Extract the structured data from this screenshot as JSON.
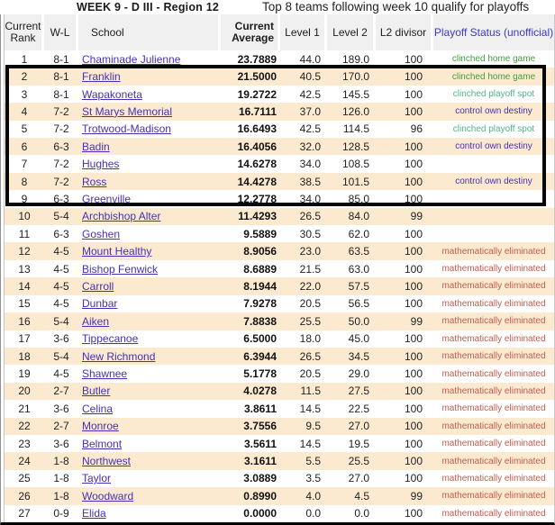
{
  "title": {
    "left": "WEEK 9 - D III - Region 12",
    "right": "Top 8 teams following week 10 qualify for playoffs"
  },
  "colors": {
    "row_alt": "#fcead0",
    "header_bg": "#f0f0f0",
    "header_blue": "#3a3ac6",
    "link": "#4531b5",
    "status_map": {
      "clinched home game": "#3da23d",
      "clinched playoff spot": "#52b487",
      "control own destiny": "#4a2fae",
      "mathematically eliminated": "#c25b4e"
    }
  },
  "table": {
    "headers": {
      "rank": "Current Rank",
      "wl": "W-L",
      "school": "School",
      "avg": "Current Average",
      "l1": "Level 1",
      "l2": "Level 2",
      "divisor": "L2 divisor",
      "status": "Playoff Status (unofficial)"
    },
    "rows": [
      [
        "1",
        "8-1",
        "Chaminade Julienne",
        "23.7889",
        "44.0",
        "189.0",
        "100",
        "clinched home game"
      ],
      [
        "2",
        "8-1",
        "Franklin",
        "21.5000",
        "40.5",
        "170.0",
        "100",
        "clinched home game"
      ],
      [
        "3",
        "8-1",
        "Wapakoneta",
        "19.2722",
        "42.5",
        "145.5",
        "100",
        "clinched playoff spot"
      ],
      [
        "4",
        "7-2",
        "St Marys Memorial",
        "16.7111",
        "37.0",
        "126.0",
        "100",
        "control own destiny"
      ],
      [
        "5",
        "7-2",
        "Trotwood-Madison",
        "16.6493",
        "42.5",
        "114.5",
        "96",
        "clinched playoff spot"
      ],
      [
        "6",
        "6-3",
        "Badin",
        "16.4056",
        "32.0",
        "128.5",
        "100",
        "control own destiny"
      ],
      [
        "7",
        "7-2",
        "Hughes",
        "14.6278",
        "34.0",
        "108.5",
        "100",
        ""
      ],
      [
        "8",
        "7-2",
        "Ross",
        "14.4278",
        "38.5",
        "101.5",
        "100",
        "control own destiny"
      ],
      [
        "9",
        "6-3",
        "Greenville",
        "12.2778",
        "34.0",
        "85.0",
        "100",
        ""
      ],
      [
        "10",
        "5-4",
        "Archbishop Alter",
        "11.4293",
        "26.5",
        "84.0",
        "99",
        ""
      ],
      [
        "11",
        "6-3",
        "Goshen",
        "9.5889",
        "30.5",
        "62.0",
        "100",
        ""
      ],
      [
        "12",
        "4-5",
        "Mount Healthy",
        "8.9056",
        "23.0",
        "63.5",
        "100",
        "mathematically eliminated"
      ],
      [
        "13",
        "4-5",
        "Bishop Fenwick",
        "8.6889",
        "21.5",
        "63.0",
        "100",
        "mathematically eliminated"
      ],
      [
        "14",
        "4-5",
        "Carroll",
        "8.1944",
        "22.0",
        "57.5",
        "100",
        "mathematically eliminated"
      ],
      [
        "15",
        "4-5",
        "Dunbar",
        "7.9278",
        "20.5",
        "56.5",
        "100",
        "mathematically eliminated"
      ],
      [
        "16",
        "5-4",
        "Aiken",
        "7.8838",
        "25.5",
        "50.0",
        "99",
        "mathematically eliminated"
      ],
      [
        "17",
        "3-6",
        "Tippecanoe",
        "6.5000",
        "18.0",
        "45.0",
        "100",
        "mathematically eliminated"
      ],
      [
        "18",
        "5-4",
        "New Richmond",
        "6.3944",
        "26.5",
        "34.5",
        "100",
        "mathematically eliminated"
      ],
      [
        "19",
        "4-5",
        "Shawnee",
        "5.1778",
        "20.5",
        "29.0",
        "100",
        "mathematically eliminated"
      ],
      [
        "20",
        "2-7",
        "Butler",
        "4.0278",
        "11.5",
        "27.5",
        "100",
        "mathematically eliminated"
      ],
      [
        "21",
        "3-6",
        "Celina",
        "3.8611",
        "14.5",
        "22.5",
        "100",
        "mathematically eliminated"
      ],
      [
        "22",
        "2-7",
        "Monroe",
        "3.7556",
        "9.5",
        "27.0",
        "100",
        "mathematically eliminated"
      ],
      [
        "23",
        "3-6",
        "Belmont",
        "3.5611",
        "14.5",
        "19.5",
        "100",
        "mathematically eliminated"
      ],
      [
        "24",
        "1-8",
        "Northwest",
        "3.1611",
        "5.5",
        "25.5",
        "100",
        "mathematically eliminated"
      ],
      [
        "25",
        "1-8",
        "Taylor",
        "3.0889",
        "3.5",
        "27.0",
        "100",
        "mathematically eliminated"
      ],
      [
        "26",
        "1-8",
        "Woodward",
        "0.8990",
        "4.0",
        "4.5",
        "99",
        "mathematically eliminated"
      ],
      [
        "27",
        "0-9",
        "Elida",
        "0.0000",
        "0.0",
        "0.0",
        "100",
        "mathematically eliminated"
      ]
    ]
  }
}
